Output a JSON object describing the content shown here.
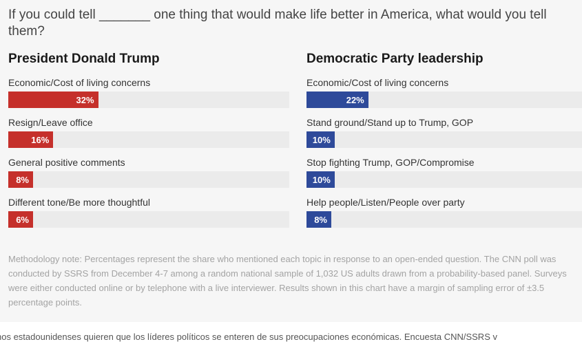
{
  "question": "If you could tell _______ one thing that would make life better in America, what would you tell them?",
  "chart_data": {
    "type": "bar",
    "title": "If you could tell _______ one thing that would make life better in America, what would you tell them?",
    "xlim": [
      0,
      100
    ],
    "panels": [
      {
        "name": "President Donald Trump",
        "color": "#c5302b",
        "categories": [
          "Economic/Cost of living concerns",
          "Resign/Leave office",
          "General positive comments",
          "Different tone/Be more thoughtful"
        ],
        "values": [
          32,
          16,
          8,
          6
        ],
        "labels": [
          "32%",
          "16%",
          "8%",
          "6%"
        ]
      },
      {
        "name": "Democratic Party leadership",
        "color": "#2e4a9a",
        "categories": [
          "Economic/Cost of living concerns",
          "Stand ground/Stand up to Trump, GOP",
          "Stop fighting Trump, GOP/Compromise",
          "Help people/Listen/People over party"
        ],
        "values": [
          22,
          10,
          10,
          8
        ],
        "labels": [
          "22%",
          "10%",
          "10%",
          "8%"
        ]
      }
    ]
  },
  "methodology": "Methodology note: Percentages represent the share who mentioned each topic in response to an open-ended question. The CNN poll was conducted by SSRS from December 4-7 among a random national sample of 1,032 US adults drawn from a probability-based panel. Surveys were either conducted online or by telephone with a live interviewer. Results shown in this chart have a margin of sampling error of ±3.5 percentage points.",
  "caption": "nos estadounidenses quieren que los líderes políticos se enteren de sus preocupaciones económicas. Encuesta CNN/SSRS v"
}
